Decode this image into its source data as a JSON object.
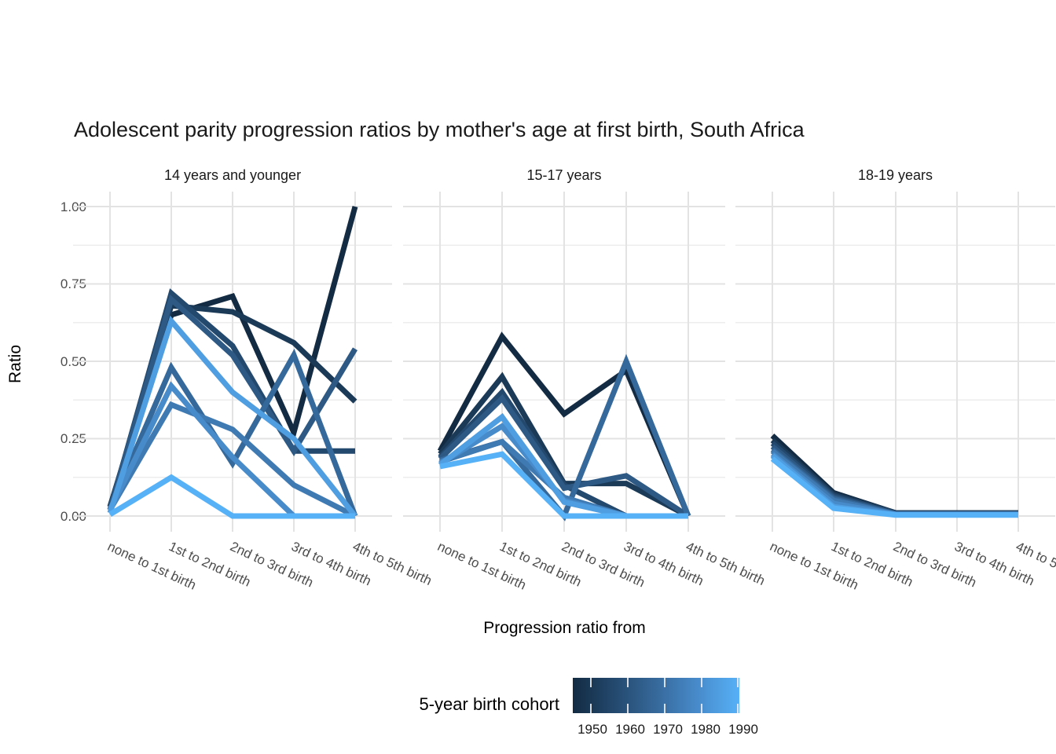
{
  "chart_data": {
    "type": "line",
    "title": "Adolescent parity progression ratios by mother's age at first birth,  South Africa",
    "x_axis": {
      "title": "Progression ratio from",
      "categories": [
        "none to 1st birth",
        "1st to 2nd birth",
        "2nd to 3rd birth",
        "3rd to 4th birth",
        "4th to 5th birth"
      ]
    },
    "y_axis": {
      "title": "Ratio",
      "tick_labels": [
        "1.00",
        "0.75",
        "0.50",
        "0.25",
        "0.00"
      ],
      "tick_values": [
        1.0,
        0.75,
        0.5,
        0.25,
        0.0
      ],
      "minor_tick_values": [
        0.875,
        0.625,
        0.375,
        0.125
      ],
      "range": [
        0,
        1
      ]
    },
    "legend": {
      "title": "5-year birth cohort",
      "tick_labels": [
        "1950",
        "1960",
        "1970",
        "1980",
        "1990"
      ],
      "gradient_low": "#132B43",
      "gradient_high": "#56B1F7"
    },
    "grid": {
      "major_color": "#E3E3E3",
      "minor_color": "#EDEDED",
      "background": "#FFFFFF"
    },
    "facets": [
      {
        "label": "14 years and younger",
        "series": [
          {
            "cohort": "1950",
            "color": "#132B43",
            "values": [
              0.03,
              0.65,
              0.71,
              0.27,
              1.0
            ]
          },
          {
            "cohort": "1955",
            "color": "#1B3A58",
            "values": [
              0.03,
              0.68,
              0.66,
              0.56,
              0.37
            ]
          },
          {
            "cohort": "1960",
            "color": "#24496E",
            "values": [
              0.02,
              0.72,
              0.55,
              0.21,
              0.21
            ]
          },
          {
            "cohort": "1965",
            "color": "#2D5984",
            "values": [
              0.02,
              0.7,
              0.52,
              0.21,
              0.54
            ]
          },
          {
            "cohort": "1970",
            "color": "#36699B",
            "values": [
              0.02,
              0.48,
              0.17,
              0.52,
              0.0
            ]
          },
          {
            "cohort": "1975",
            "color": "#3F7AB3",
            "values": [
              0.02,
              0.36,
              0.28,
              0.1,
              0.0
            ]
          },
          {
            "cohort": "1980",
            "color": "#488BCB",
            "values": [
              0.02,
              0.42,
              0.19,
              0.0,
              0.0
            ]
          },
          {
            "cohort": "1985",
            "color": "#4F9EE1",
            "values": [
              0.01,
              0.63,
              0.4,
              0.25,
              0.0
            ]
          },
          {
            "cohort": "1990",
            "color": "#56B1F7",
            "values": [
              0.005,
              0.125,
              0.0,
              0.0,
              0.0
            ]
          }
        ]
      },
      {
        "label": "15-17 years",
        "series": [
          {
            "cohort": "1950",
            "color": "#132B43",
            "values": [
              0.21,
              0.58,
              0.33,
              0.47,
              0.0
            ]
          },
          {
            "cohort": "1955",
            "color": "#1B3A58",
            "values": [
              0.2,
              0.45,
              0.105,
              0.105,
              0.0
            ]
          },
          {
            "cohort": "1960",
            "color": "#24496E",
            "values": [
              0.19,
              0.4,
              0.1,
              0.0,
              0.0
            ]
          },
          {
            "cohort": "1965",
            "color": "#2D5984",
            "values": [
              0.185,
              0.38,
              0.09,
              0.13,
              0.0
            ]
          },
          {
            "cohort": "1970",
            "color": "#36699B",
            "values": [
              0.18,
              0.24,
              0.0,
              0.5,
              0.0
            ]
          },
          {
            "cohort": "1975",
            "color": "#3F7AB3",
            "values": [
              0.175,
              0.24,
              0.06,
              0.0,
              0.0
            ]
          },
          {
            "cohort": "1980",
            "color": "#488BCB",
            "values": [
              0.17,
              0.29,
              0.05,
              0.0,
              0.0
            ]
          },
          {
            "cohort": "1985",
            "color": "#4F9EE1",
            "values": [
              0.165,
              0.32,
              0.045,
              0.0,
              0.0
            ]
          },
          {
            "cohort": "1990",
            "color": "#56B1F7",
            "values": [
              0.16,
              0.2,
              0.0,
              0.0,
              0.0
            ]
          }
        ]
      },
      {
        "label": "18-19 years",
        "series": [
          {
            "cohort": "1950",
            "color": "#132B43",
            "values": [
              0.26,
              0.075,
              0.01,
              0.01,
              0.01
            ]
          },
          {
            "cohort": "1955",
            "color": "#1B3A58",
            "values": [
              0.245,
              0.07,
              0.01,
              0.01,
              0.01
            ]
          },
          {
            "cohort": "1960",
            "color": "#24496E",
            "values": [
              0.235,
              0.065,
              0.008,
              0.008,
              0.008
            ]
          },
          {
            "cohort": "1965",
            "color": "#2D5984",
            "values": [
              0.225,
              0.06,
              0.007,
              0.007,
              0.007
            ]
          },
          {
            "cohort": "1970",
            "color": "#36699B",
            "values": [
              0.215,
              0.055,
              0.006,
              0.006,
              0.006
            ]
          },
          {
            "cohort": "1975",
            "color": "#3F7AB3",
            "values": [
              0.21,
              0.05,
              0.005,
              0.005,
              0.005
            ]
          },
          {
            "cohort": "1980",
            "color": "#488BCB",
            "values": [
              0.2,
              0.04,
              0.005,
              0.005,
              0.005
            ]
          },
          {
            "cohort": "1985",
            "color": "#4F9EE1",
            "values": [
              0.195,
              0.03,
              0.004,
              0.004,
              0.004
            ]
          },
          {
            "cohort": "1990",
            "color": "#56B1F7",
            "values": [
              0.185,
              0.025,
              0.003,
              0.003,
              0.003
            ]
          }
        ]
      }
    ]
  }
}
